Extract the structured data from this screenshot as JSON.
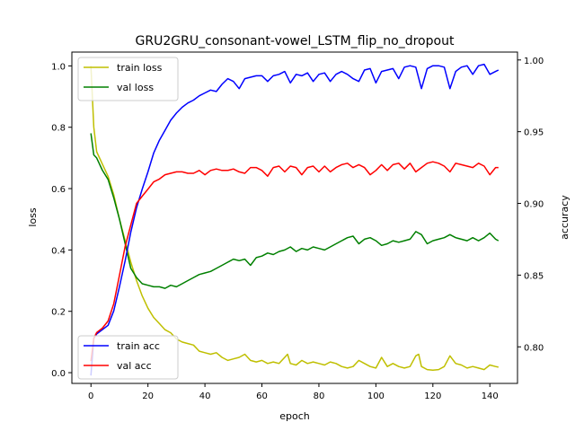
{
  "chart_data": {
    "type": "line",
    "title": "GRU2GRU_consonant-vowel_LSTM_flip_no_dropout",
    "xlabel": "epoch",
    "ylabel_left": "loss",
    "ylabel_right": "accuracy",
    "xlim": [
      -6.7,
      149.7
    ],
    "ylim_left": [
      -0.035,
      1.045
    ],
    "ylim_right": [
      0.7745,
      1.0055
    ],
    "x_ticks": [
      0,
      20,
      40,
      60,
      80,
      100,
      120,
      140
    ],
    "y_ticks_left": [
      0.0,
      0.2,
      0.4,
      0.6,
      0.8,
      1.0
    ],
    "y_ticks_right": [
      0.8,
      0.85,
      0.9,
      0.95,
      1.0
    ],
    "x_tick_labels": [
      "0",
      "20",
      "40",
      "60",
      "80",
      "100",
      "120",
      "140"
    ],
    "y_tick_labels_left": [
      "0.0",
      "0.2",
      "0.4",
      "0.6",
      "0.8",
      "1.0"
    ],
    "y_tick_labels_right": [
      "0.80",
      "0.85",
      "0.90",
      "0.95",
      "1.00"
    ],
    "grid": false,
    "legends": [
      {
        "placement": "upper-left",
        "entries": [
          "train loss",
          "val loss"
        ]
      },
      {
        "placement": "lower-left",
        "entries": [
          "train acc",
          "val acc"
        ]
      }
    ],
    "series": [
      {
        "name": "train loss",
        "axis": "left",
        "color": "#bfbf00",
        "points": [
          [
            0,
            1.0
          ],
          [
            1,
            0.8
          ],
          [
            2,
            0.72
          ],
          [
            4,
            0.68
          ],
          [
            6,
            0.64
          ],
          [
            8,
            0.58
          ],
          [
            10,
            0.5
          ],
          [
            12,
            0.43
          ],
          [
            14,
            0.36
          ],
          [
            16,
            0.3
          ],
          [
            18,
            0.25
          ],
          [
            20,
            0.21
          ],
          [
            22,
            0.18
          ],
          [
            24,
            0.16
          ],
          [
            26,
            0.14
          ],
          [
            28,
            0.13
          ],
          [
            30,
            0.11
          ],
          [
            32,
            0.1
          ],
          [
            34,
            0.095
          ],
          [
            36,
            0.09
          ],
          [
            38,
            0.07
          ],
          [
            40,
            0.065
          ],
          [
            42,
            0.06
          ],
          [
            44,
            0.065
          ],
          [
            46,
            0.05
          ],
          [
            48,
            0.04
          ],
          [
            50,
            0.045
          ],
          [
            52,
            0.05
          ],
          [
            54,
            0.06
          ],
          [
            56,
            0.04
          ],
          [
            58,
            0.035
          ],
          [
            60,
            0.04
          ],
          [
            62,
            0.03
          ],
          [
            64,
            0.035
          ],
          [
            66,
            0.03
          ],
          [
            68,
            0.05
          ],
          [
            69,
            0.06
          ],
          [
            70,
            0.03
          ],
          [
            72,
            0.025
          ],
          [
            74,
            0.04
          ],
          [
            76,
            0.03
          ],
          [
            78,
            0.035
          ],
          [
            80,
            0.03
          ],
          [
            82,
            0.025
          ],
          [
            84,
            0.035
          ],
          [
            86,
            0.03
          ],
          [
            88,
            0.02
          ],
          [
            90,
            0.015
          ],
          [
            92,
            0.02
          ],
          [
            94,
            0.04
          ],
          [
            96,
            0.03
          ],
          [
            98,
            0.02
          ],
          [
            100,
            0.015
          ],
          [
            102,
            0.05
          ],
          [
            104,
            0.02
          ],
          [
            106,
            0.03
          ],
          [
            108,
            0.02
          ],
          [
            110,
            0.015
          ],
          [
            112,
            0.02
          ],
          [
            114,
            0.055
          ],
          [
            115,
            0.06
          ],
          [
            116,
            0.02
          ],
          [
            118,
            0.01
          ],
          [
            120,
            0.008
          ],
          [
            122,
            0.01
          ],
          [
            124,
            0.02
          ],
          [
            126,
            0.055
          ],
          [
            128,
            0.03
          ],
          [
            130,
            0.025
          ],
          [
            132,
            0.015
          ],
          [
            134,
            0.02
          ],
          [
            136,
            0.015
          ],
          [
            138,
            0.01
          ],
          [
            140,
            0.025
          ],
          [
            142,
            0.02
          ],
          [
            143,
            0.018
          ]
        ]
      },
      {
        "name": "val loss",
        "axis": "left",
        "color": "#008000",
        "points": [
          [
            0,
            0.78
          ],
          [
            1,
            0.71
          ],
          [
            2,
            0.7
          ],
          [
            4,
            0.66
          ],
          [
            6,
            0.63
          ],
          [
            8,
            0.57
          ],
          [
            10,
            0.5
          ],
          [
            12,
            0.42
          ],
          [
            14,
            0.34
          ],
          [
            16,
            0.31
          ],
          [
            18,
            0.29
          ],
          [
            20,
            0.285
          ],
          [
            22,
            0.28
          ],
          [
            24,
            0.28
          ],
          [
            26,
            0.275
          ],
          [
            28,
            0.285
          ],
          [
            30,
            0.28
          ],
          [
            32,
            0.29
          ],
          [
            34,
            0.3
          ],
          [
            36,
            0.31
          ],
          [
            38,
            0.32
          ],
          [
            40,
            0.325
          ],
          [
            42,
            0.33
          ],
          [
            44,
            0.34
          ],
          [
            46,
            0.35
          ],
          [
            48,
            0.36
          ],
          [
            50,
            0.37
          ],
          [
            52,
            0.365
          ],
          [
            54,
            0.37
          ],
          [
            56,
            0.35
          ],
          [
            58,
            0.375
          ],
          [
            60,
            0.38
          ],
          [
            62,
            0.39
          ],
          [
            64,
            0.385
          ],
          [
            66,
            0.395
          ],
          [
            68,
            0.4
          ],
          [
            70,
            0.41
          ],
          [
            72,
            0.395
          ],
          [
            74,
            0.405
          ],
          [
            76,
            0.4
          ],
          [
            78,
            0.41
          ],
          [
            80,
            0.405
          ],
          [
            82,
            0.4
          ],
          [
            84,
            0.41
          ],
          [
            86,
            0.42
          ],
          [
            88,
            0.43
          ],
          [
            90,
            0.44
          ],
          [
            92,
            0.445
          ],
          [
            94,
            0.42
          ],
          [
            96,
            0.435
          ],
          [
            98,
            0.44
          ],
          [
            100,
            0.43
          ],
          [
            102,
            0.415
          ],
          [
            104,
            0.42
          ],
          [
            106,
            0.43
          ],
          [
            108,
            0.425
          ],
          [
            110,
            0.43
          ],
          [
            112,
            0.435
          ],
          [
            114,
            0.46
          ],
          [
            116,
            0.45
          ],
          [
            118,
            0.42
          ],
          [
            120,
            0.43
          ],
          [
            122,
            0.435
          ],
          [
            124,
            0.44
          ],
          [
            126,
            0.45
          ],
          [
            128,
            0.44
          ],
          [
            130,
            0.435
          ],
          [
            132,
            0.43
          ],
          [
            134,
            0.44
          ],
          [
            136,
            0.43
          ],
          [
            138,
            0.44
          ],
          [
            140,
            0.455
          ],
          [
            142,
            0.435
          ],
          [
            143,
            0.43
          ]
        ]
      },
      {
        "name": "train acc",
        "axis": "right",
        "color": "#0000ff",
        "points": [
          [
            0,
            0.78
          ],
          [
            1,
            0.806
          ],
          [
            2,
            0.809
          ],
          [
            4,
            0.812
          ],
          [
            6,
            0.815
          ],
          [
            8,
            0.825
          ],
          [
            10,
            0.842
          ],
          [
            12,
            0.86
          ],
          [
            14,
            0.88
          ],
          [
            16,
            0.897
          ],
          [
            18,
            0.91
          ],
          [
            20,
            0.922
          ],
          [
            22,
            0.935
          ],
          [
            24,
            0.944
          ],
          [
            26,
            0.951
          ],
          [
            28,
            0.958
          ],
          [
            30,
            0.963
          ],
          [
            32,
            0.967
          ],
          [
            34,
            0.97
          ],
          [
            36,
            0.972
          ],
          [
            38,
            0.975
          ],
          [
            40,
            0.977
          ],
          [
            42,
            0.979
          ],
          [
            44,
            0.978
          ],
          [
            46,
            0.983
          ],
          [
            48,
            0.987
          ],
          [
            50,
            0.985
          ],
          [
            52,
            0.98
          ],
          [
            54,
            0.987
          ],
          [
            56,
            0.988
          ],
          [
            58,
            0.989
          ],
          [
            60,
            0.989
          ],
          [
            62,
            0.985
          ],
          [
            64,
            0.989
          ],
          [
            66,
            0.99
          ],
          [
            68,
            0.992
          ],
          [
            70,
            0.984
          ],
          [
            72,
            0.99
          ],
          [
            74,
            0.989
          ],
          [
            76,
            0.991
          ],
          [
            78,
            0.985
          ],
          [
            80,
            0.99
          ],
          [
            82,
            0.991
          ],
          [
            84,
            0.985
          ],
          [
            86,
            0.99
          ],
          [
            88,
            0.992
          ],
          [
            90,
            0.99
          ],
          [
            92,
            0.987
          ],
          [
            94,
            0.985
          ],
          [
            96,
            0.993
          ],
          [
            98,
            0.994
          ],
          [
            100,
            0.984
          ],
          [
            102,
            0.992
          ],
          [
            104,
            0.993
          ],
          [
            106,
            0.994
          ],
          [
            108,
            0.987
          ],
          [
            110,
            0.995
          ],
          [
            112,
            0.996
          ],
          [
            114,
            0.995
          ],
          [
            116,
            0.98
          ],
          [
            118,
            0.994
          ],
          [
            120,
            0.996
          ],
          [
            122,
            0.996
          ],
          [
            124,
            0.995
          ],
          [
            126,
            0.98
          ],
          [
            128,
            0.992
          ],
          [
            130,
            0.995
          ],
          [
            132,
            0.996
          ],
          [
            134,
            0.99
          ],
          [
            136,
            0.996
          ],
          [
            138,
            0.997
          ],
          [
            140,
            0.99
          ],
          [
            142,
            0.992
          ],
          [
            143,
            0.993
          ]
        ]
      },
      {
        "name": "val acc",
        "axis": "right",
        "color": "#ff0000",
        "points": [
          [
            0,
            0.79
          ],
          [
            1,
            0.806
          ],
          [
            2,
            0.81
          ],
          [
            4,
            0.813
          ],
          [
            6,
            0.818
          ],
          [
            8,
            0.83
          ],
          [
            10,
            0.85
          ],
          [
            12,
            0.87
          ],
          [
            14,
            0.885
          ],
          [
            16,
            0.9
          ],
          [
            18,
            0.905
          ],
          [
            20,
            0.91
          ],
          [
            22,
            0.915
          ],
          [
            24,
            0.917
          ],
          [
            26,
            0.92
          ],
          [
            28,
            0.921
          ],
          [
            30,
            0.922
          ],
          [
            32,
            0.922
          ],
          [
            34,
            0.921
          ],
          [
            36,
            0.921
          ],
          [
            38,
            0.923
          ],
          [
            40,
            0.92
          ],
          [
            42,
            0.923
          ],
          [
            44,
            0.924
          ],
          [
            46,
            0.923
          ],
          [
            48,
            0.923
          ],
          [
            50,
            0.924
          ],
          [
            52,
            0.922
          ],
          [
            54,
            0.921
          ],
          [
            56,
            0.925
          ],
          [
            58,
            0.925
          ],
          [
            60,
            0.923
          ],
          [
            62,
            0.919
          ],
          [
            64,
            0.925
          ],
          [
            66,
            0.926
          ],
          [
            68,
            0.922
          ],
          [
            70,
            0.926
          ],
          [
            72,
            0.925
          ],
          [
            74,
            0.92
          ],
          [
            76,
            0.925
          ],
          [
            78,
            0.926
          ],
          [
            80,
            0.922
          ],
          [
            82,
            0.926
          ],
          [
            84,
            0.922
          ],
          [
            86,
            0.925
          ],
          [
            88,
            0.927
          ],
          [
            90,
            0.928
          ],
          [
            92,
            0.925
          ],
          [
            94,
            0.927
          ],
          [
            96,
            0.925
          ],
          [
            98,
            0.92
          ],
          [
            100,
            0.923
          ],
          [
            102,
            0.927
          ],
          [
            104,
            0.923
          ],
          [
            106,
            0.927
          ],
          [
            108,
            0.928
          ],
          [
            110,
            0.924
          ],
          [
            112,
            0.928
          ],
          [
            114,
            0.922
          ],
          [
            116,
            0.925
          ],
          [
            118,
            0.928
          ],
          [
            120,
            0.929
          ],
          [
            122,
            0.928
          ],
          [
            124,
            0.926
          ],
          [
            126,
            0.922
          ],
          [
            128,
            0.928
          ],
          [
            130,
            0.927
          ],
          [
            132,
            0.926
          ],
          [
            134,
            0.925
          ],
          [
            136,
            0.928
          ],
          [
            138,
            0.926
          ],
          [
            140,
            0.92
          ],
          [
            142,
            0.925
          ],
          [
            143,
            0.925
          ]
        ]
      }
    ]
  }
}
